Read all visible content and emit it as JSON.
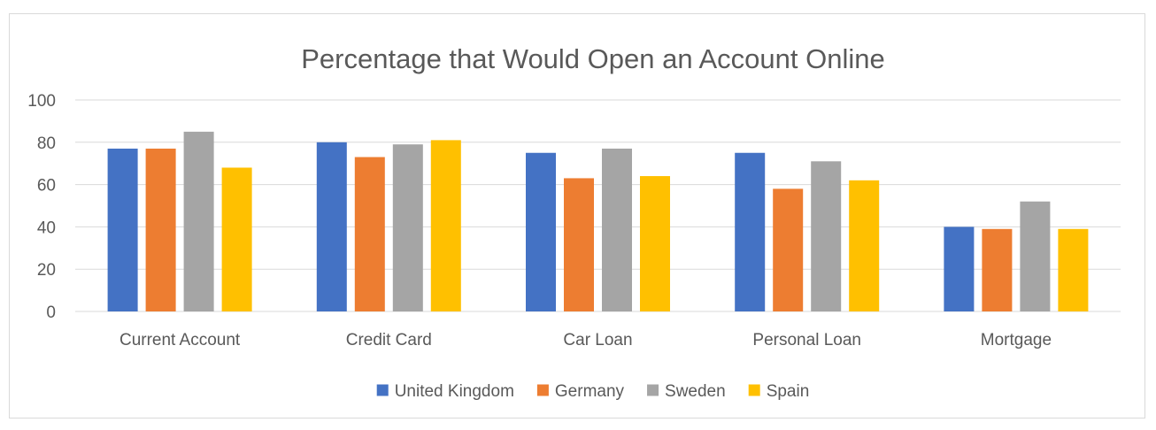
{
  "chart_data": {
    "type": "bar",
    "title": "Percentage that Would Open an Account Online",
    "categories": [
      "Current Account",
      "Credit Card",
      "Car Loan",
      "Personal Loan",
      "Mortgage"
    ],
    "series": [
      {
        "name": "United Kingdom",
        "color": "#4472c4",
        "values": [
          77,
          80,
          75,
          75,
          40
        ]
      },
      {
        "name": "Germany",
        "color": "#ed7d31",
        "values": [
          77,
          73,
          63,
          58,
          39
        ]
      },
      {
        "name": "Sweden",
        "color": "#a5a5a5",
        "values": [
          85,
          79,
          77,
          71,
          52
        ]
      },
      {
        "name": "Spain",
        "color": "#ffc000",
        "values": [
          68,
          81,
          64,
          62,
          39
        ]
      }
    ],
    "ylim": [
      0,
      100
    ],
    "yticks": [
      0,
      20,
      40,
      60,
      80,
      100
    ],
    "grid": true,
    "legend": "bottom"
  }
}
